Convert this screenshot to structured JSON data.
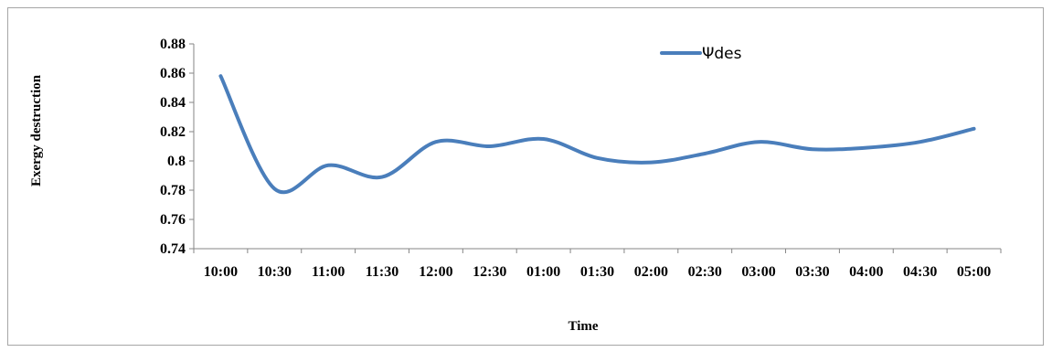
{
  "chart_data": {
    "type": "line",
    "title": "",
    "xlabel": "Time",
    "ylabel": "Exergy destruction",
    "categories": [
      "10:00",
      "10:30",
      "11:00",
      "11:30",
      "12:00",
      "12:30",
      "01:00",
      "01:30",
      "02:00",
      "02:30",
      "03:00",
      "03:30",
      "04:00",
      "04:30",
      "05:00"
    ],
    "series": [
      {
        "name": "Ψdes",
        "color": "#4a7ebb",
        "values": [
          0.858,
          0.781,
          0.797,
          0.789,
          0.813,
          0.81,
          0.815,
          0.802,
          0.799,
          0.805,
          0.813,
          0.808,
          0.809,
          0.813,
          0.822
        ]
      }
    ],
    "ylim": [
      0.74,
      0.88
    ],
    "yticks": [
      0.74,
      0.76,
      0.78,
      0.8,
      0.82,
      0.84,
      0.86,
      0.88
    ],
    "ytick_labels": [
      "0.74",
      "0.76",
      "0.78",
      "0.8",
      "0.82",
      "0.84",
      "0.86",
      "0.88"
    ],
    "grid": false,
    "legend": "top-right"
  }
}
